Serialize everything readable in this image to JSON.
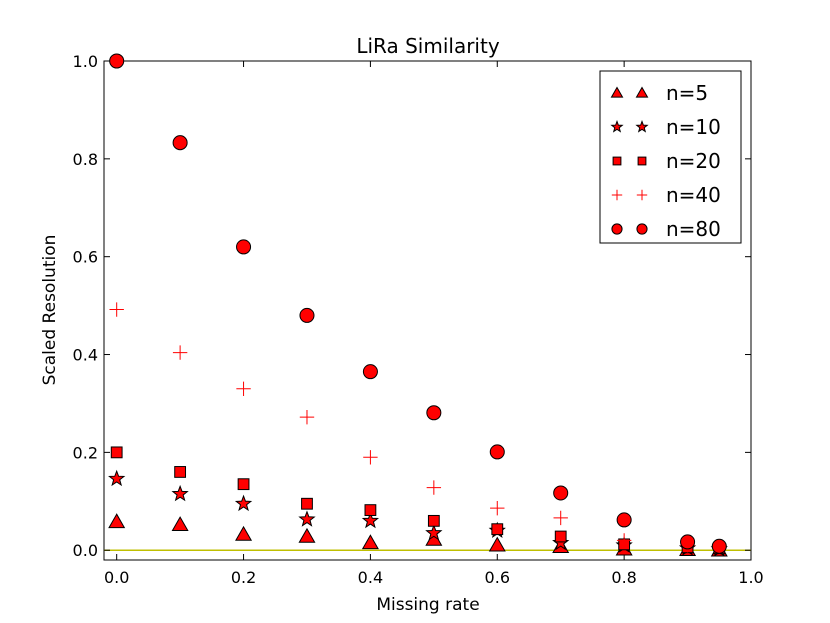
{
  "chart_data": {
    "type": "scatter",
    "title": "LiRa Similarity",
    "xlabel": "Missing rate",
    "ylabel": "Scaled Resolution",
    "xlim": [
      -0.02,
      1.0
    ],
    "ylim": [
      -0.02,
      1.0
    ],
    "xticks": [
      0.0,
      0.2,
      0.4,
      0.6,
      0.8,
      1.0
    ],
    "yticks": [
      0.0,
      0.2,
      0.4,
      0.6,
      0.8,
      1.0
    ],
    "xtick_labels": [
      "0.0",
      "0.2",
      "0.4",
      "0.6",
      "0.8",
      "1.0"
    ],
    "ytick_labels": [
      "0.0",
      "0.2",
      "0.4",
      "0.6",
      "0.8",
      "1.0"
    ],
    "legend_position": "top-right",
    "marker_color": "#ff0000",
    "baseline": {
      "y": 0.0,
      "color": "#bfbf00"
    },
    "x": [
      0.0,
      0.1,
      0.2,
      0.3,
      0.4,
      0.5,
      0.6,
      0.7,
      0.8,
      0.9,
      0.95
    ],
    "series": [
      {
        "name": "n=5",
        "marker": "triangle",
        "values": [
          0.058,
          0.052,
          0.032,
          0.028,
          0.015,
          0.022,
          0.01,
          0.007,
          0.002,
          0.001,
          0.0
        ]
      },
      {
        "name": "n=10",
        "marker": "star",
        "values": [
          0.146,
          0.115,
          0.095,
          0.063,
          0.06,
          0.035,
          0.04,
          0.015,
          0.01,
          0.004,
          0.002
        ]
      },
      {
        "name": "n=20",
        "marker": "square",
        "values": [
          0.2,
          0.16,
          0.135,
          0.095,
          0.082,
          0.06,
          0.043,
          0.028,
          0.012,
          0.006,
          0.004
        ]
      },
      {
        "name": "n=40",
        "marker": "plus",
        "values": [
          0.492,
          0.404,
          0.33,
          0.272,
          0.19,
          0.128,
          0.086,
          0.066,
          0.02,
          0.01,
          0.006
        ]
      },
      {
        "name": "n=80",
        "marker": "circle",
        "values": [
          1.0,
          0.833,
          0.62,
          0.48,
          0.365,
          0.281,
          0.201,
          0.117,
          0.062,
          0.017,
          0.008
        ]
      }
    ]
  }
}
